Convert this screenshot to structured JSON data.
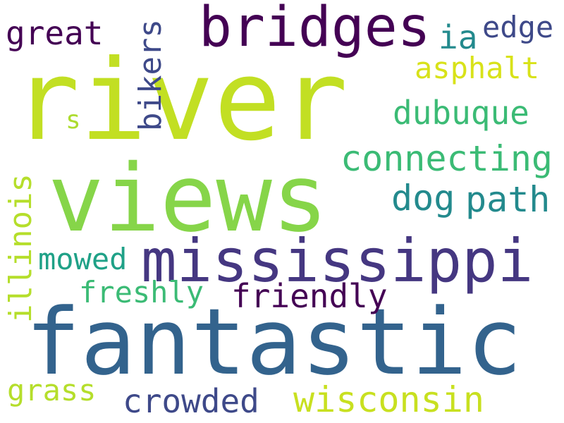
{
  "words": {
    "river": {
      "text": "river",
      "color": "#c2df23"
    },
    "views": {
      "text": "views",
      "color": "#86d549"
    },
    "fantastic": {
      "text": "fantastic",
      "color": "#33638d"
    },
    "mississippi": {
      "text": "mississippi",
      "color": "#453781"
    },
    "bridges": {
      "text": "bridges",
      "color": "#440154"
    },
    "great": {
      "text": "great",
      "color": "#440154"
    },
    "bikers": {
      "text": "bikers",
      "color": "#3e4989"
    },
    "ia": {
      "text": "ia",
      "color": "#238a8d"
    },
    "edge": {
      "text": "edge",
      "color": "#3e4989"
    },
    "asphalt": {
      "text": "asphalt",
      "color": "#d8e219"
    },
    "dubuque": {
      "text": "dubuque",
      "color": "#3bbb75"
    },
    "s": {
      "text": "s",
      "color": "#addc30"
    },
    "connecting": {
      "text": "connecting",
      "color": "#3bbb75"
    },
    "dog": {
      "text": "dog",
      "color": "#238a8d"
    },
    "path": {
      "text": "path",
      "color": "#238a8d"
    },
    "illinois": {
      "text": "illinois",
      "color": "#b5de2b"
    },
    "mowed": {
      "text": "mowed",
      "color": "#1fa187"
    },
    "freshly": {
      "text": "freshly",
      "color": "#3bbb75"
    },
    "friendly": {
      "text": "friendly",
      "color": "#440154"
    },
    "grass": {
      "text": "grass",
      "color": "#b5de2b"
    },
    "crowded": {
      "text": "crowded",
      "color": "#3e4989"
    },
    "wisconsin": {
      "text": "wisconsin",
      "color": "#c8e020"
    }
  }
}
